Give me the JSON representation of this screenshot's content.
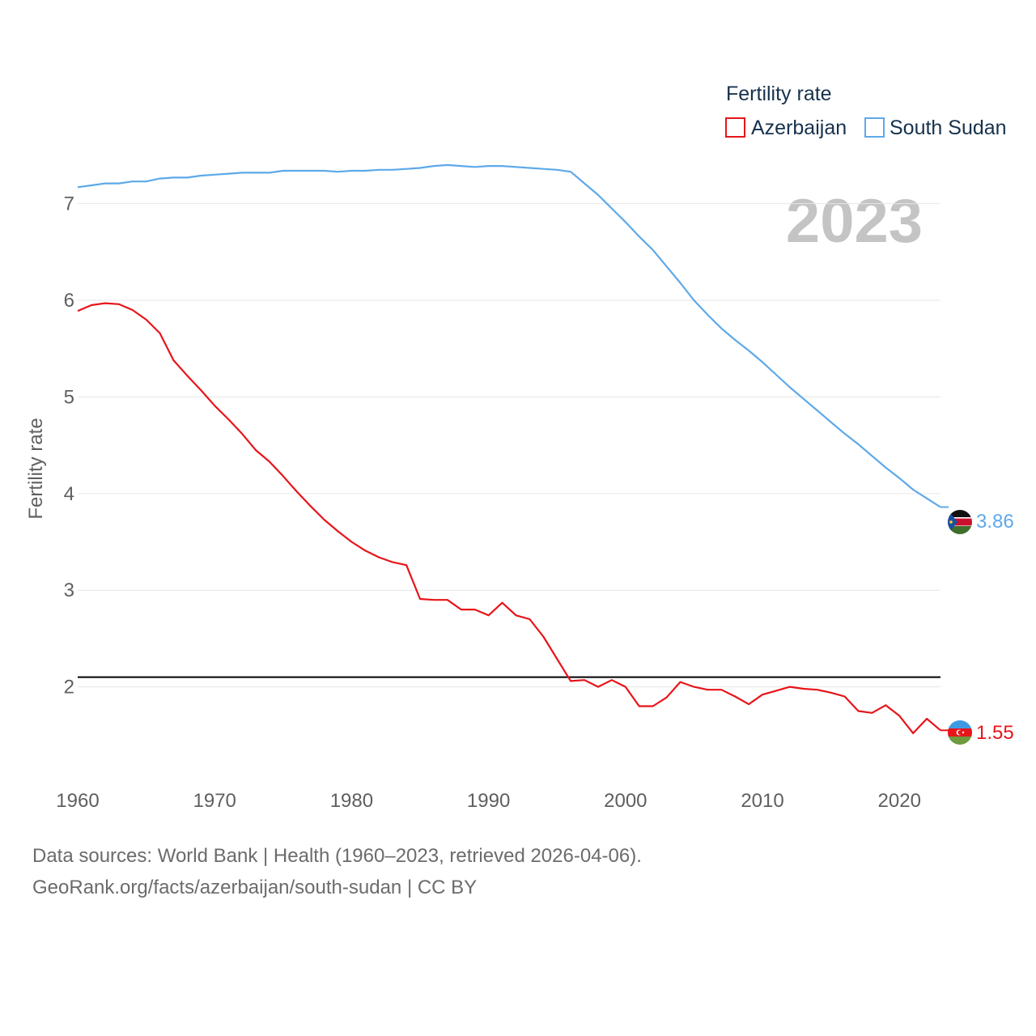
{
  "chart_data": {
    "type": "line",
    "title": "",
    "legend_title": "Fertility rate",
    "current_year": "2023",
    "ylabel": "Fertility rate",
    "xlabel": "",
    "xlim": [
      1960,
      2023
    ],
    "ylim": [
      1,
      7.6
    ],
    "x_ticks": [
      1960,
      1970,
      1980,
      1990,
      2000,
      2010,
      2020
    ],
    "y_ticks": [
      2,
      3,
      4,
      5,
      6,
      7
    ],
    "reference_line": {
      "value": 2.1,
      "color": "#000000"
    },
    "x": [
      1960,
      1961,
      1962,
      1963,
      1964,
      1965,
      1966,
      1967,
      1968,
      1969,
      1970,
      1971,
      1972,
      1973,
      1974,
      1975,
      1976,
      1977,
      1978,
      1979,
      1980,
      1981,
      1982,
      1983,
      1984,
      1985,
      1986,
      1987,
      1988,
      1989,
      1990,
      1991,
      1992,
      1993,
      1994,
      1995,
      1996,
      1997,
      1998,
      1999,
      2000,
      2001,
      2002,
      2003,
      2004,
      2005,
      2006,
      2007,
      2008,
      2009,
      2010,
      2011,
      2012,
      2013,
      2014,
      2015,
      2016,
      2017,
      2018,
      2019,
      2020,
      2021,
      2022,
      2023
    ],
    "series": [
      {
        "name": "Azerbaijan",
        "color": "#e8141a",
        "end_label": "1.55",
        "values": [
          5.89,
          5.95,
          5.97,
          5.96,
          5.9,
          5.8,
          5.66,
          5.38,
          5.22,
          5.07,
          4.91,
          4.77,
          4.62,
          4.45,
          4.33,
          4.18,
          4.02,
          3.87,
          3.73,
          3.61,
          3.5,
          3.41,
          3.34,
          3.29,
          3.26,
          2.91,
          2.9,
          2.9,
          2.8,
          2.8,
          2.74,
          2.87,
          2.74,
          2.7,
          2.52,
          2.29,
          2.06,
          2.07,
          2.0,
          2.07,
          2.0,
          1.8,
          1.8,
          1.89,
          2.05,
          2.0,
          1.97,
          1.97,
          1.9,
          1.82,
          1.92,
          1.96,
          2.0,
          1.98,
          1.97,
          1.94,
          1.9,
          1.75,
          1.73,
          1.81,
          1.7,
          1.52,
          1.67,
          1.55
        ]
      },
      {
        "name": "South Sudan",
        "color": "#5da9e9",
        "end_label": "3.86",
        "values": [
          7.17,
          7.19,
          7.21,
          7.21,
          7.23,
          7.23,
          7.26,
          7.27,
          7.27,
          7.29,
          7.3,
          7.31,
          7.32,
          7.32,
          7.32,
          7.34,
          7.34,
          7.34,
          7.34,
          7.33,
          7.34,
          7.34,
          7.35,
          7.35,
          7.36,
          7.37,
          7.39,
          7.4,
          7.39,
          7.38,
          7.39,
          7.39,
          7.38,
          7.37,
          7.36,
          7.35,
          7.33,
          7.21,
          7.09,
          6.95,
          6.81,
          6.66,
          6.52,
          6.35,
          6.18,
          6.0,
          5.85,
          5.71,
          5.59,
          5.48,
          5.36,
          5.23,
          5.1,
          4.98,
          4.86,
          4.74,
          4.62,
          4.51,
          4.39,
          4.27,
          4.16,
          4.04,
          3.95,
          3.86
        ]
      }
    ]
  },
  "source": {
    "line1": "Data sources: World Bank | Health (1960–2023, retrieved 2026-04-06).",
    "line2": "GeoRank.org/facts/azerbaijan/south-sudan | CC BY"
  }
}
